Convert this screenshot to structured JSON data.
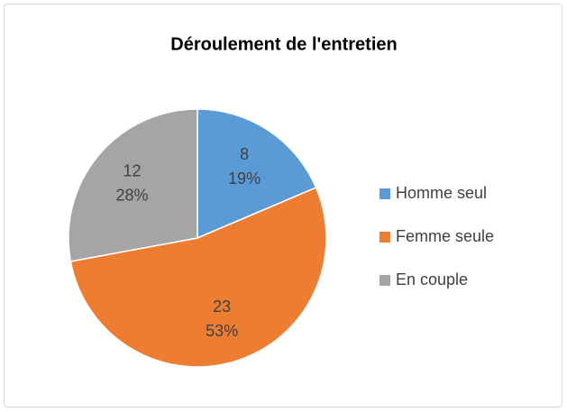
{
  "chart_data": {
    "type": "pie",
    "title": "Déroulement de l'entretien",
    "categories": [
      "Homme seul",
      "Femme seule",
      "En couple"
    ],
    "values": [
      8,
      23,
      12
    ],
    "percent_labels": [
      "19%",
      "53%",
      "28%"
    ],
    "colors": [
      "#5b9bd5",
      "#ed7d31",
      "#a5a5a5"
    ],
    "legend": "right"
  }
}
